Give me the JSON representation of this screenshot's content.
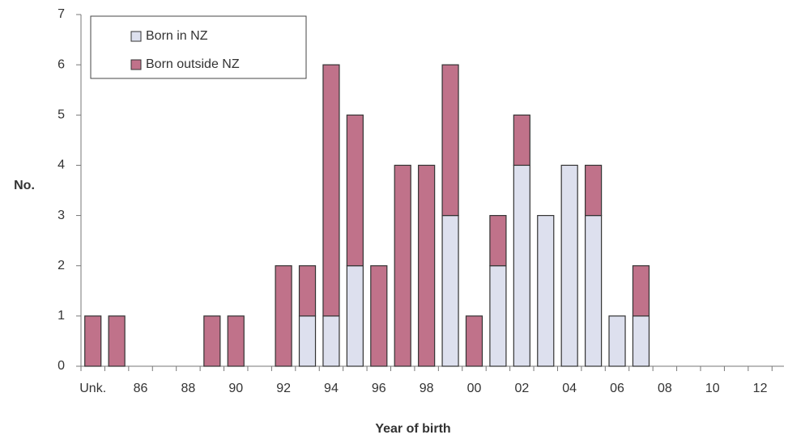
{
  "chart_data": {
    "type": "stacked-bar",
    "xlabel": "Year of birth",
    "ylabel": "No.",
    "categories": [
      "Unk.",
      null,
      "86",
      null,
      "88",
      null,
      "90",
      null,
      "92",
      null,
      "94",
      null,
      "96",
      null,
      "98",
      null,
      "00",
      null,
      "02",
      null,
      "04",
      null,
      "06",
      null,
      "08",
      null,
      "10",
      null,
      "12"
    ],
    "series": [
      {
        "name": "Born in NZ",
        "color": "#dde0ee",
        "values": [
          0,
          0,
          0,
          0,
          0,
          0,
          0,
          0,
          0,
          1,
          1,
          2,
          0,
          0,
          0,
          3,
          0,
          2,
          4,
          3,
          4,
          3,
          1,
          1,
          0,
          0,
          0,
          0,
          0
        ]
      },
      {
        "name": "Born outside NZ",
        "color": "#c0728a",
        "values": [
          1,
          1,
          0,
          0,
          0,
          1,
          1,
          0,
          2,
          1,
          5,
          3,
          2,
          4,
          4,
          3,
          1,
          1,
          1,
          0,
          0,
          1,
          0,
          1,
          0,
          0,
          0,
          0,
          0
        ]
      }
    ],
    "ylim": [
      0,
      7
    ],
    "yticks": [
      0,
      1,
      2,
      3,
      4,
      5,
      6,
      7
    ],
    "legend": "top-left"
  }
}
